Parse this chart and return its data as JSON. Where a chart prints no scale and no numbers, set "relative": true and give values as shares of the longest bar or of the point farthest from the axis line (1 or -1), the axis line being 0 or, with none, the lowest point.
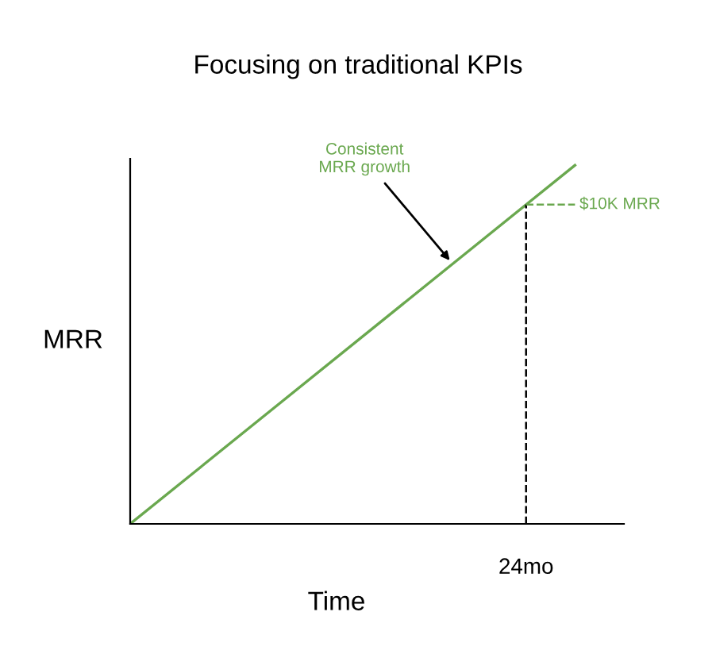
{
  "chart_data": {
    "type": "line",
    "title": "Focusing on traditional KPIs",
    "xlabel": "Time",
    "ylabel": "MRR",
    "relative": true,
    "categories": [
      null,
      null
    ],
    "series": [
      {
        "color": "#6aa84f",
        "values": [
          0,
          1
        ]
      }
    ],
    "ref_lines": [
      {
        "axis": "x",
        "label": "24mo",
        "color": "#000000",
        "line_style": "dashed"
      },
      {
        "axis": "y",
        "value": 0.89,
        "label": "$10K MRR",
        "color": "#6aa84f",
        "line_style": "dashed"
      }
    ],
    "annotations": [
      "Consistent\nMRR growth"
    ],
    "marker": "none",
    "line_style": "solid"
  }
}
